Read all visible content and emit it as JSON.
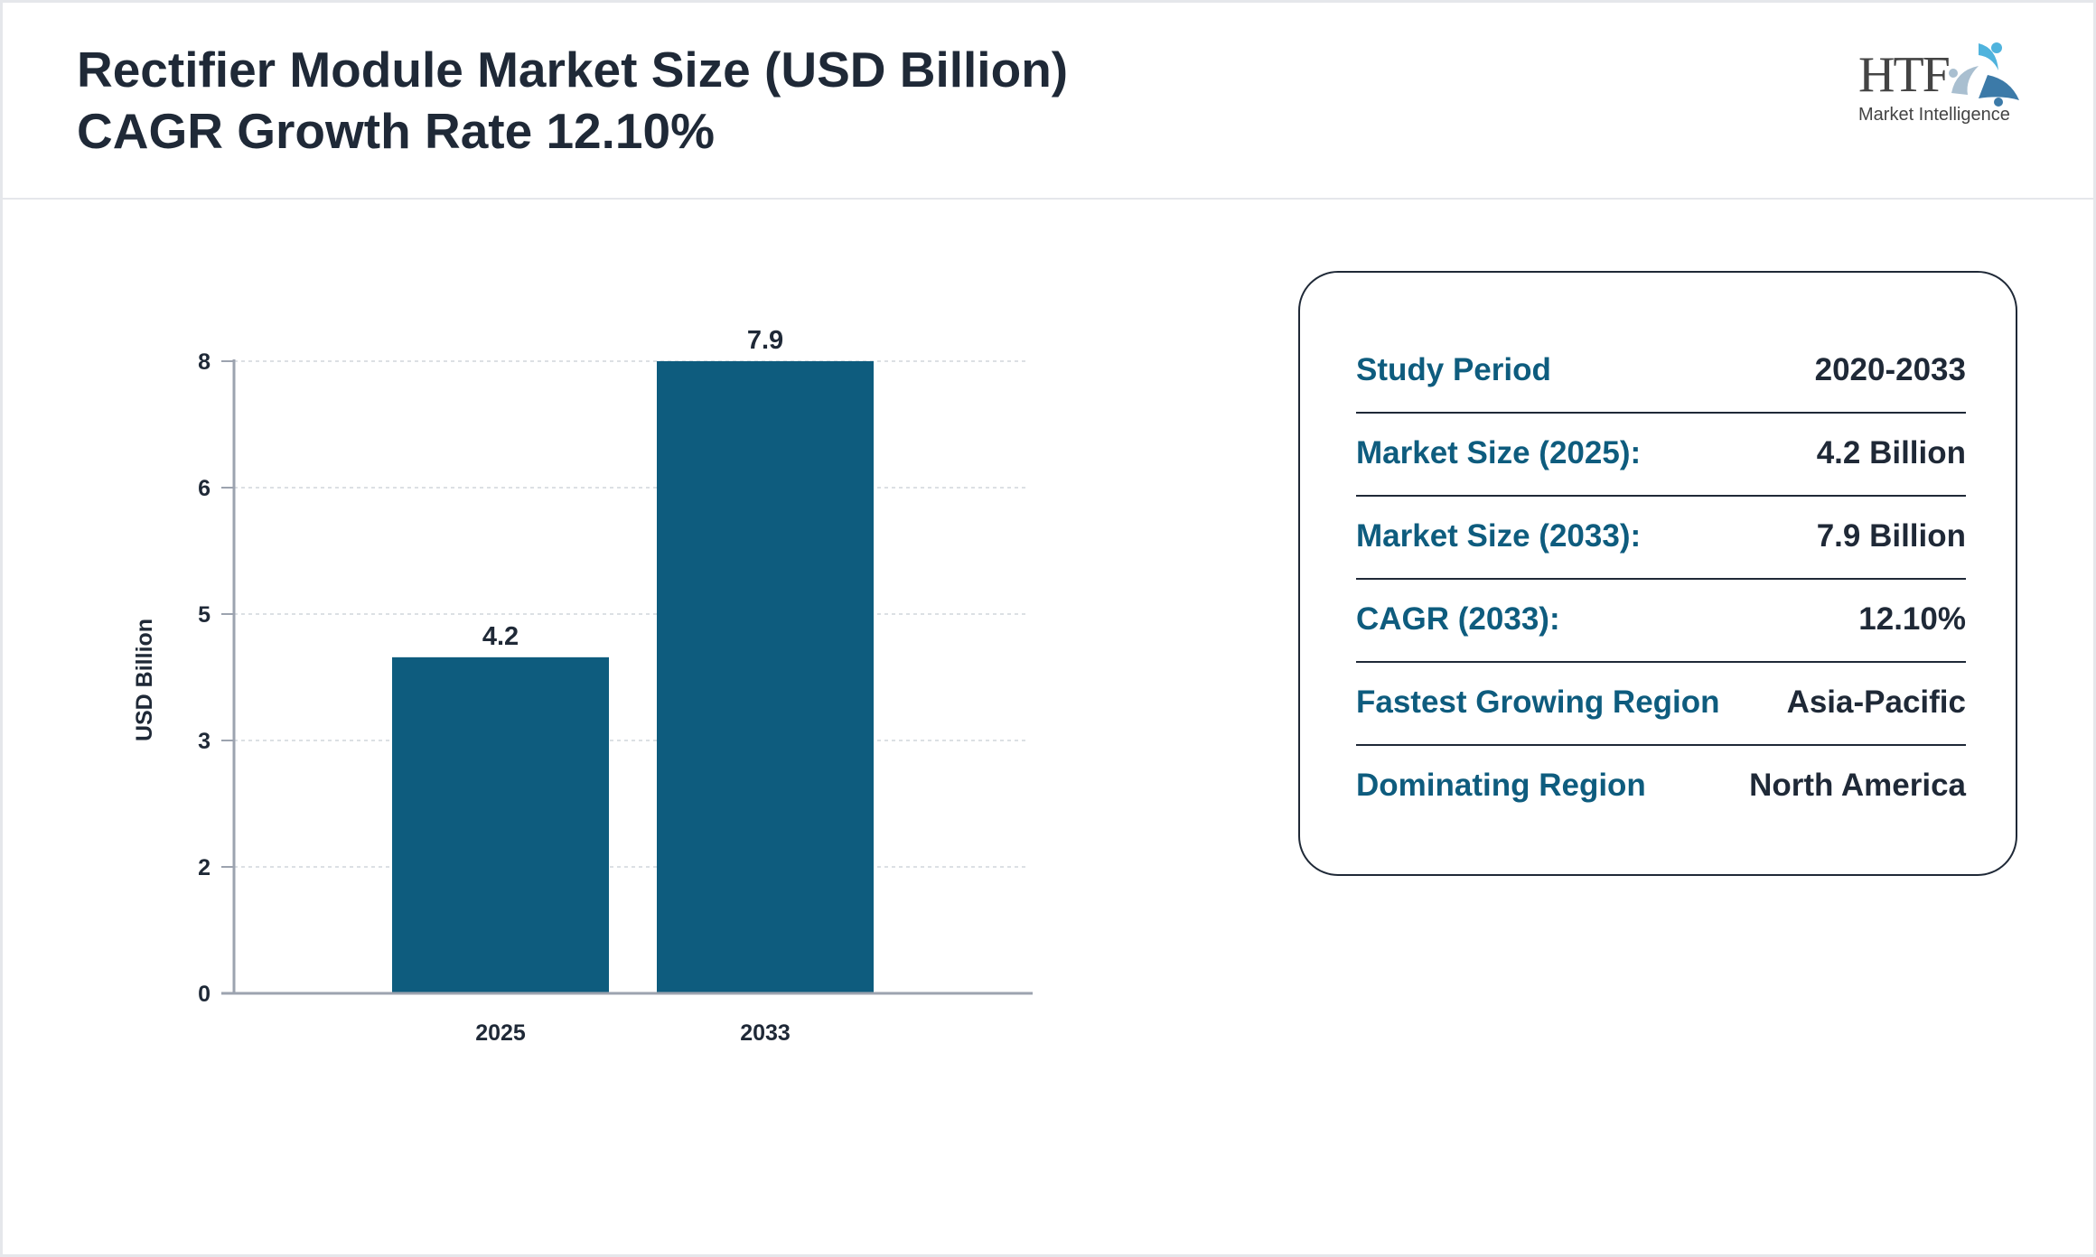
{
  "header": {
    "title_line1": "Rectifier Module Market Size (USD Billion)",
    "title_line2": "CAGR Growth Rate 12.10%",
    "logo_text": "HTF",
    "logo_subtext": "Market Intelligence"
  },
  "chart_data": {
    "type": "bar",
    "categories": [
      "2025",
      "2033"
    ],
    "values": [
      4.2,
      7.9
    ],
    "data_labels": [
      "4.2",
      "7.9"
    ],
    "title": "",
    "xlabel": "",
    "ylabel": "USD Billion",
    "ylim": [
      0,
      7.9
    ],
    "yticks": [
      0,
      1.58,
      3.16,
      4.74,
      6.32,
      7.9
    ],
    "ytick_labels": [
      "0",
      "2",
      "3",
      "5",
      "6",
      "8"
    ],
    "grid": true,
    "bar_color": "#0e5c7e"
  },
  "summary": {
    "rows": [
      {
        "label": "Study Period",
        "value": "2020-2033"
      },
      {
        "label": "Market Size (2025):",
        "value": "4.2 Billion"
      },
      {
        "label": "Market Size (2033):",
        "value": "7.9 Billion"
      },
      {
        "label": "CAGR (2033):",
        "value": "12.10%"
      },
      {
        "label": "Fastest Growing Region",
        "value": "Asia-Pacific"
      },
      {
        "label": "Dominating Region",
        "value": "North America"
      }
    ]
  },
  "colors": {
    "accent": "#0e5c7e",
    "text": "#1f2937"
  }
}
